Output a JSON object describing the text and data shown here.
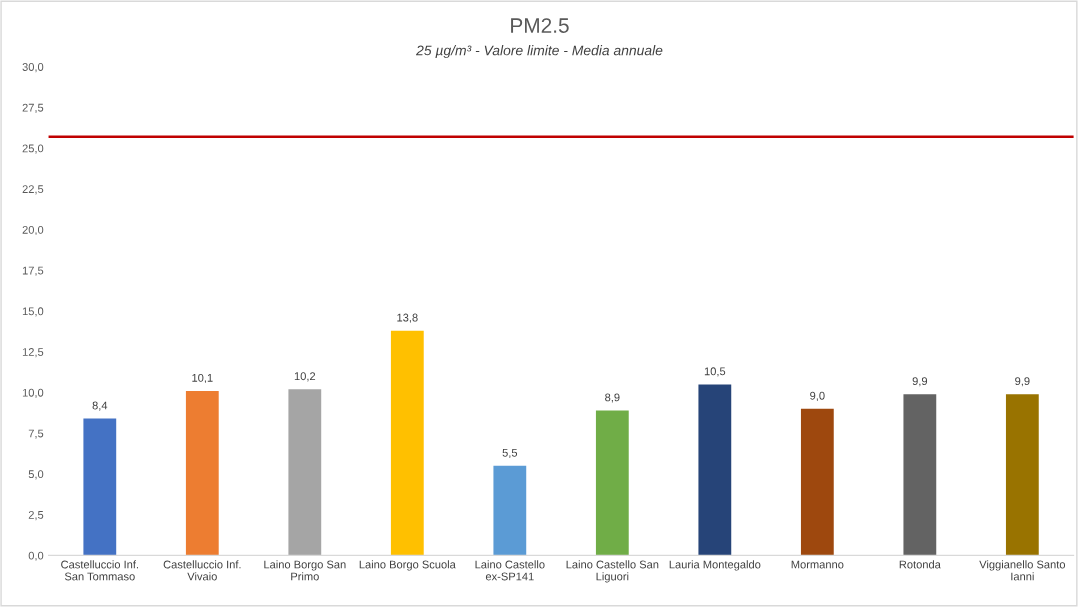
{
  "chart_data": {
    "type": "bar",
    "title": "PM2.5",
    "subtitle": "25 µg/m³ - Valore limite - Media annuale",
    "categories": [
      "Castelluccio Inf. San Tommaso",
      "Castelluccio Inf. Vivaio",
      "Laino Borgo San Primo",
      "Laino Borgo Scuola",
      "Laino Castello ex-SP141",
      "Laino Castello San Liguori",
      "Lauria Montegaldo",
      "Mormanno",
      "Rotonda",
      "Viggianello Santo Ianni"
    ],
    "values": [
      8.4,
      10.1,
      10.2,
      13.8,
      5.5,
      8.9,
      10.5,
      9.0,
      9.9,
      9.9
    ],
    "value_labels": [
      "8,4",
      "10,1",
      "10,2",
      "13,8",
      "5,5",
      "8,9",
      "10,5",
      "9,0",
      "9,9",
      "9,9"
    ],
    "colors": [
      "#4472c4",
      "#ed7d31",
      "#a5a5a5",
      "#ffc000",
      "#5b9bd5",
      "#70ad47",
      "#264478",
      "#9e480e",
      "#636363",
      "#997300"
    ],
    "ylim": [
      0,
      30
    ],
    "yticks": [
      {
        "value": 0,
        "label": "0,0"
      },
      {
        "value": 2.5,
        "label": "2,5"
      },
      {
        "value": 5,
        "label": "5,0"
      },
      {
        "value": 7.5,
        "label": "7,5"
      },
      {
        "value": 10,
        "label": "10,0"
      },
      {
        "value": 12.5,
        "label": "12,5"
      },
      {
        "value": 15,
        "label": "15,0"
      },
      {
        "value": 17.5,
        "label": "17,5"
      },
      {
        "value": 20,
        "label": "20,0"
      },
      {
        "value": 22.5,
        "label": "22,5"
      },
      {
        "value": 25,
        "label": "25,0"
      },
      {
        "value": 27.5,
        "label": "27,5"
      },
      {
        "value": 30,
        "label": "30,0"
      }
    ],
    "ref_lines": [
      {
        "axis": "y",
        "value": 25.7,
        "color": "#c00000",
        "line_style": "solid"
      }
    ],
    "grid": false
  }
}
